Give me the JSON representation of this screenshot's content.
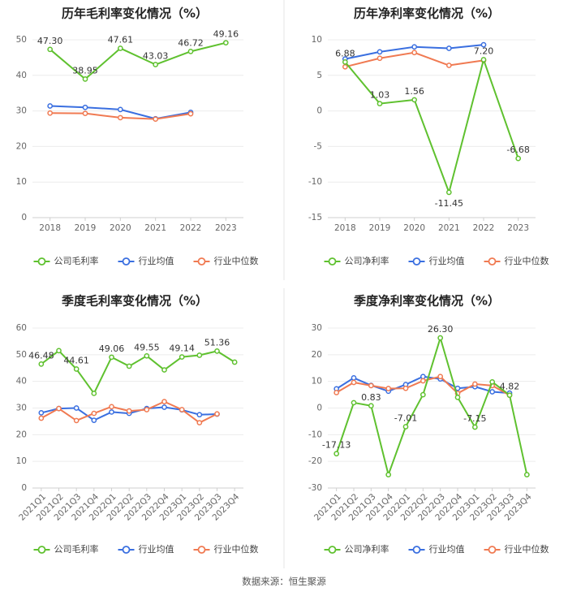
{
  "source_text": "数据来源：恒生聚源",
  "colors": {
    "company": "#5fc12f",
    "avg": "#3a6fe0",
    "median": "#f07a52"
  },
  "chart_data": [
    {
      "type": "line",
      "title": "历年毛利率变化情况（%）",
      "categories": [
        "2018",
        "2019",
        "2020",
        "2021",
        "2022",
        "2023"
      ],
      "ylim": [
        0,
        50
      ],
      "yticks": [
        0,
        10,
        20,
        30,
        40,
        50
      ],
      "series": [
        {
          "name": "公司毛利率",
          "key": "company",
          "values": [
            47.3,
            38.95,
            47.61,
            43.03,
            46.72,
            49.16
          ]
        },
        {
          "name": "行业均值",
          "key": "avg",
          "values": [
            31.4,
            31.0,
            30.4,
            27.8,
            29.6,
            null
          ]
        },
        {
          "name": "行业中位数",
          "key": "median",
          "values": [
            29.4,
            29.3,
            28.1,
            27.7,
            29.2,
            null
          ]
        }
      ],
      "data_labels": [
        {
          "series": 0,
          "index": 0,
          "text": "47.30"
        },
        {
          "series": 0,
          "index": 1,
          "text": "38.95"
        },
        {
          "series": 0,
          "index": 2,
          "text": "47.61"
        },
        {
          "series": 0,
          "index": 3,
          "text": "43.03"
        },
        {
          "series": 0,
          "index": 4,
          "text": "46.72"
        },
        {
          "series": 0,
          "index": 5,
          "text": "49.16"
        }
      ]
    },
    {
      "type": "line",
      "title": "历年净利率变化情况（%）",
      "categories": [
        "2018",
        "2019",
        "2020",
        "2021",
        "2022",
        "2023"
      ],
      "ylim": [
        -15,
        10
      ],
      "yticks": [
        -15,
        -10,
        -5,
        0,
        5,
        10
      ],
      "series": [
        {
          "name": "公司净利率",
          "key": "company",
          "values": [
            6.88,
            1.03,
            1.56,
            -11.45,
            7.2,
            -6.68
          ]
        },
        {
          "name": "行业均值",
          "key": "avg",
          "values": [
            7.3,
            8.3,
            9.0,
            8.8,
            9.3,
            null
          ]
        },
        {
          "name": "行业中位数",
          "key": "median",
          "values": [
            6.2,
            7.4,
            8.2,
            6.4,
            7.1,
            null
          ]
        }
      ],
      "data_labels": [
        {
          "series": 0,
          "index": 0,
          "text": "6.88"
        },
        {
          "series": 0,
          "index": 1,
          "text": "1.03"
        },
        {
          "series": 0,
          "index": 2,
          "text": "1.56"
        },
        {
          "series": 0,
          "index": 3,
          "text": "-11.45"
        },
        {
          "series": 0,
          "index": 4,
          "text": "7.20"
        },
        {
          "series": 0,
          "index": 5,
          "text": "-6.68"
        }
      ]
    },
    {
      "type": "line",
      "title": "季度毛利率变化情况（%）",
      "categories": [
        "2021Q1",
        "2021Q2",
        "2021Q3",
        "2021Q4",
        "2022Q1",
        "2022Q2",
        "2022Q3",
        "2022Q4",
        "2023Q1",
        "2023Q2",
        "2023Q3",
        "2023Q4"
      ],
      "ylim": [
        0,
        60
      ],
      "yticks": [
        0,
        10,
        20,
        30,
        40,
        50,
        60
      ],
      "series": [
        {
          "name": "公司毛利率",
          "key": "company",
          "values": [
            46.48,
            51.5,
            44.61,
            35.5,
            49.06,
            45.7,
            49.55,
            44.3,
            49.14,
            49.8,
            51.36,
            47.2
          ]
        },
        {
          "name": "行业均值",
          "key": "avg",
          "values": [
            28.2,
            29.8,
            30.0,
            25.4,
            28.5,
            28.0,
            29.8,
            30.3,
            29.3,
            27.5,
            27.7,
            null
          ]
        },
        {
          "name": "行业中位数",
          "key": "median",
          "values": [
            26.2,
            29.8,
            25.3,
            28.0,
            30.5,
            28.9,
            29.4,
            32.4,
            29.4,
            24.5,
            27.8,
            null
          ]
        }
      ],
      "data_labels": [
        {
          "series": 0,
          "index": 0,
          "text": "46.48"
        },
        {
          "series": 0,
          "index": 2,
          "text": "44.61"
        },
        {
          "series": 0,
          "index": 4,
          "text": "49.06"
        },
        {
          "series": 0,
          "index": 6,
          "text": "49.55"
        },
        {
          "series": 0,
          "index": 8,
          "text": "49.14"
        },
        {
          "series": 0,
          "index": 10,
          "text": "51.36"
        }
      ]
    },
    {
      "type": "line",
      "title": "季度净利率变化情况（%）",
      "categories": [
        "2021Q1",
        "2021Q2",
        "2021Q3",
        "2021Q4",
        "2022Q1",
        "2022Q2",
        "2022Q3",
        "2022Q4",
        "2023Q1",
        "2023Q2",
        "2023Q3",
        "2023Q4"
      ],
      "ylim": [
        -30,
        30
      ],
      "yticks": [
        -30,
        -20,
        -10,
        0,
        10,
        20,
        30
      ],
      "series": [
        {
          "name": "公司净利率",
          "key": "company",
          "values": [
            -17.13,
            2.0,
            0.83,
            -25.0,
            -7.01,
            5.0,
            26.3,
            4.0,
            -7.15,
            9.8,
            4.82,
            -25.0
          ]
        },
        {
          "name": "行业均值",
          "key": "avg",
          "values": [
            7.2,
            11.3,
            8.5,
            6.3,
            8.8,
            11.8,
            10.9,
            7.4,
            8.0,
            6.1,
            5.6,
            null
          ]
        },
        {
          "name": "行业中位数",
          "key": "median",
          "values": [
            5.8,
            9.6,
            8.4,
            7.3,
            7.4,
            10.2,
            11.8,
            5.5,
            9.0,
            8.4,
            4.8,
            null
          ]
        }
      ],
      "data_labels": [
        {
          "series": 0,
          "index": 0,
          "text": "-17.13"
        },
        {
          "series": 0,
          "index": 2,
          "text": "0.83"
        },
        {
          "series": 0,
          "index": 4,
          "text": "-7.01"
        },
        {
          "series": 0,
          "index": 6,
          "text": "26.30"
        },
        {
          "series": 0,
          "index": 8,
          "text": "-7.15"
        },
        {
          "series": 0,
          "index": 10,
          "text": "4.82"
        }
      ]
    }
  ]
}
